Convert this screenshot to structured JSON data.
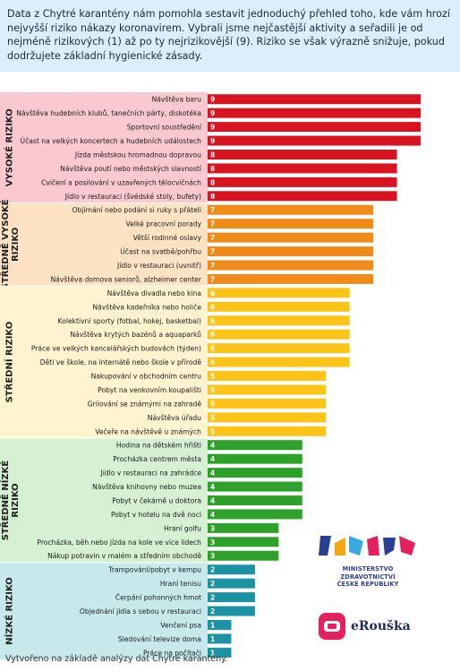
{
  "intro_text": "Data z Chytré karantény nám pomohla sestavit jednoduchý přehled toho, kde vám hrozí nejvyšší riziko nákazy koronavirem. Vybrali jsme nejčastější aktivity a seřadili je od nejméně rizikových (1) až po ty nejrizikovější (9). Riziko se však výrazně snižuje, pokud dodržujete základní hygienické zásady.",
  "footer_text": "Vytvořeno na základě analýzy dat Chytré karantény.",
  "ministry": {
    "line1": "MINISTERSTVO ZDRAVOTNICTVÍ",
    "line2": "ČESKÉ REPUBLIKY"
  },
  "erouska_label": "eRouška",
  "colors": {
    "intro_bg": "#dceefa",
    "level_9_8": "#d7141f",
    "level_7": "#f08a18",
    "level_6_5": "#fbc417",
    "level_4_3": "#2da129",
    "level_2_1": "#1b93a4",
    "band_vysoke": "#f9c9cf",
    "band_stredne_vysoke": "#fde3c4",
    "band_stredni": "#fff4cf",
    "band_stredne_nizke": "#d5f0d2",
    "band_nizke": "#c8e9ec"
  },
  "chart_data": {
    "type": "bar",
    "orientation": "horizontal",
    "xlim": [
      0,
      9
    ],
    "categories": [
      "Návštěva baru",
      "Návštěva hudebních klubů, tanečních párty, diskotéka",
      "Sportovní soustředění",
      "Účast na velkých koncertech a hudebních událostech",
      "Jízda městskou hromadnou dopravou",
      "Návštěva poutí nebo městských slavností",
      "Cvičení a posilování v uzavřených tělocvičnách",
      "Jídlo v restauraci (švédské stoly, bufety)",
      "Objímání nebo podání si ruky s přáteli",
      "Velké pracovní porady",
      "Větší rodinné oslavy",
      "Účast na svatbě/pohřbu",
      "Jídlo v restauraci (uvnitř)",
      "Návštěva domova seniorů, alzheimer center",
      "Návštěva divadla nebo kina",
      "Návštěva kadeřníka nebo holiče",
      "Kolektivní sporty (fotbal, hokej, basketbal)",
      "Návštěva krytých bazénů a aquaparků",
      "Práce ve velkých kancelářských budovách (týden)",
      "Děti ve škole, na internátě nebo škole v přírodě",
      "Nakupování v obchodním centru",
      "Pobyt na venkovním koupališti",
      "Grilování se známými na zahradě",
      "Návštěva úřadu",
      "Večeře na návštěvě u známých",
      "Hodina na dětském hřišti",
      "Procházka centrem města",
      "Jídlo v restauraci na zahrádce",
      "Návštěva knihovny nebo muzea",
      "Pobyt v čekárně u doktora",
      "Pobyt v hotelu na dvě noci",
      "Hraní golfu",
      "Procházka, běh nebo jízda na kole ve více lidech",
      "Nákup potravin v malém a středním obchodě",
      "Trampování/pobyt v kempu",
      "Hraní tenisu",
      "Čerpání pohonných hmot",
      "Objednání jídla s sebou v restauraci",
      "Venčení psa",
      "Sledování televize doma",
      "Práce na počítači"
    ],
    "values": [
      9,
      9,
      9,
      9,
      8,
      8,
      8,
      8,
      7,
      7,
      7,
      7,
      7,
      7,
      6,
      6,
      6,
      6,
      6,
      6,
      5,
      5,
      5,
      5,
      5,
      4,
      4,
      4,
      4,
      4,
      4,
      3,
      3,
      3,
      2,
      2,
      2,
      2,
      1,
      1,
      1
    ],
    "groups": [
      {
        "label": "VYSOKÉ RIZIKO",
        "start": 0,
        "end": 7
      },
      {
        "label": "STŘEDNĚ VYSOKÉ RIZIKO",
        "start": 8,
        "end": 13
      },
      {
        "label": "STŘEDNÍ RIZIKO",
        "start": 14,
        "end": 24
      },
      {
        "label": "STŘEDNĚ NÍZKÉ RIZIKO",
        "start": 25,
        "end": 33
      },
      {
        "label": "NÍZKÉ RIZIKO",
        "start": 34,
        "end": 40
      }
    ]
  }
}
